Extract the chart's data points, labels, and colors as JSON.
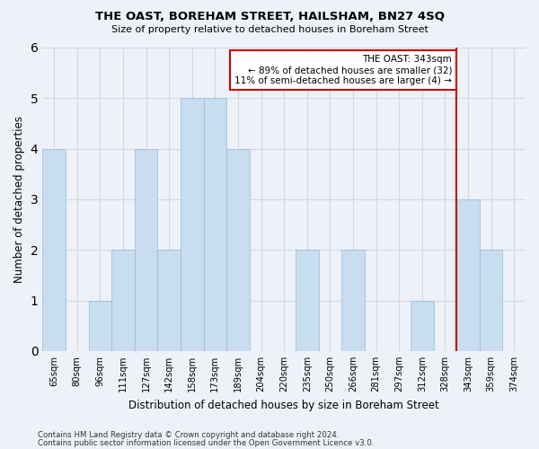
{
  "title": "THE OAST, BOREHAM STREET, HAILSHAM, BN27 4SQ",
  "subtitle": "Size of property relative to detached houses in Boreham Street",
  "xlabel": "Distribution of detached houses by size in Boreham Street",
  "ylabel": "Number of detached properties",
  "footer_line1": "Contains HM Land Registry data © Crown copyright and database right 2024.",
  "footer_line2": "Contains public sector information licensed under the Open Government Licence v3.0.",
  "categories": [
    "65sqm",
    "80sqm",
    "96sqm",
    "111sqm",
    "127sqm",
    "142sqm",
    "158sqm",
    "173sqm",
    "189sqm",
    "204sqm",
    "220sqm",
    "235sqm",
    "250sqm",
    "266sqm",
    "281sqm",
    "297sqm",
    "312sqm",
    "328sqm",
    "343sqm",
    "359sqm",
    "374sqm"
  ],
  "values": [
    4,
    0,
    1,
    2,
    4,
    2,
    5,
    5,
    4,
    0,
    0,
    2,
    0,
    2,
    0,
    0,
    1,
    0,
    3,
    2,
    0
  ],
  "bar_color": "#c8ddf0",
  "bar_edge_color": "#9ab8d8",
  "red_line_index": 18,
  "annotation_text": "THE OAST: 343sqm\n← 89% of detached houses are smaller (32)\n11% of semi-detached houses are larger (4) →",
  "annotation_box_color": "#ffffff",
  "annotation_edge_color": "#cc0000",
  "red_line_color": "#cc0000",
  "ylim": [
    0,
    6
  ],
  "yticks": [
    0,
    1,
    2,
    3,
    4,
    5,
    6
  ],
  "grid_color": "#d0d8e4",
  "background_color": "#eef2f8"
}
